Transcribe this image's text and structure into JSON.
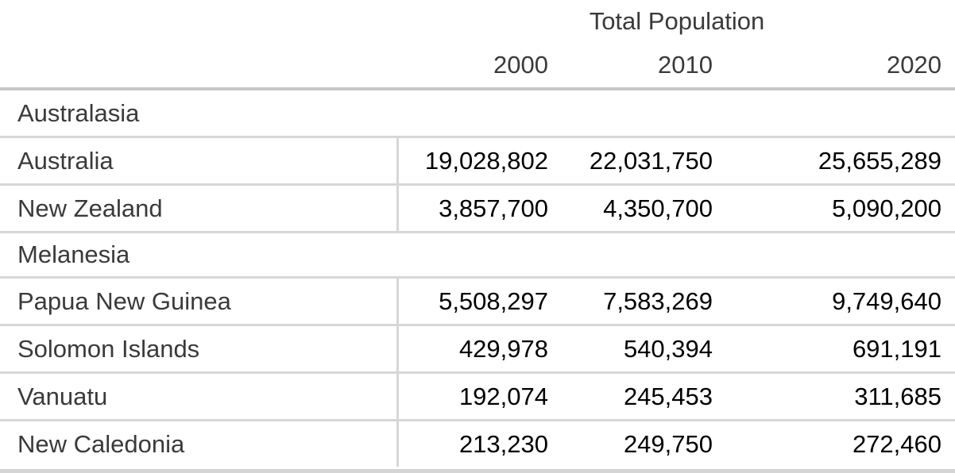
{
  "chart_data": {
    "type": "table",
    "title": "Total Population",
    "columns": [
      "2000",
      "2010",
      "2020"
    ],
    "sections": [
      {
        "name": "Australasia",
        "rows": [
          {
            "country": "Australia",
            "values": [
              "19,028,802",
              "22,031,750",
              "25,655,289"
            ]
          },
          {
            "country": "New Zealand",
            "values": [
              "3,857,700",
              "4,350,700",
              "5,090,200"
            ]
          }
        ]
      },
      {
        "name": "Melanesia",
        "rows": [
          {
            "country": "Papua New Guinea",
            "values": [
              "5,508,297",
              "7,583,269",
              "9,749,640"
            ]
          },
          {
            "country": "Solomon Islands",
            "values": [
              "429,978",
              "540,394",
              "691,191"
            ]
          },
          {
            "country": "Vanuatu",
            "values": [
              "192,074",
              "245,453",
              "311,685"
            ]
          },
          {
            "country": "New Caledonia",
            "values": [
              "213,230",
              "249,750",
              "272,460"
            ]
          }
        ]
      }
    ],
    "layout": {
      "legend": "none",
      "grid": "horizontal-rules-with-single-column-divider"
    }
  },
  "colors": {
    "label_text": "#3a3a3a",
    "number_text": "#000000",
    "header_rule": "#c6c6c6",
    "row_rule": "#d7d7d7",
    "bottom_rule": "#d5d5d5",
    "background": "#ffffff"
  }
}
